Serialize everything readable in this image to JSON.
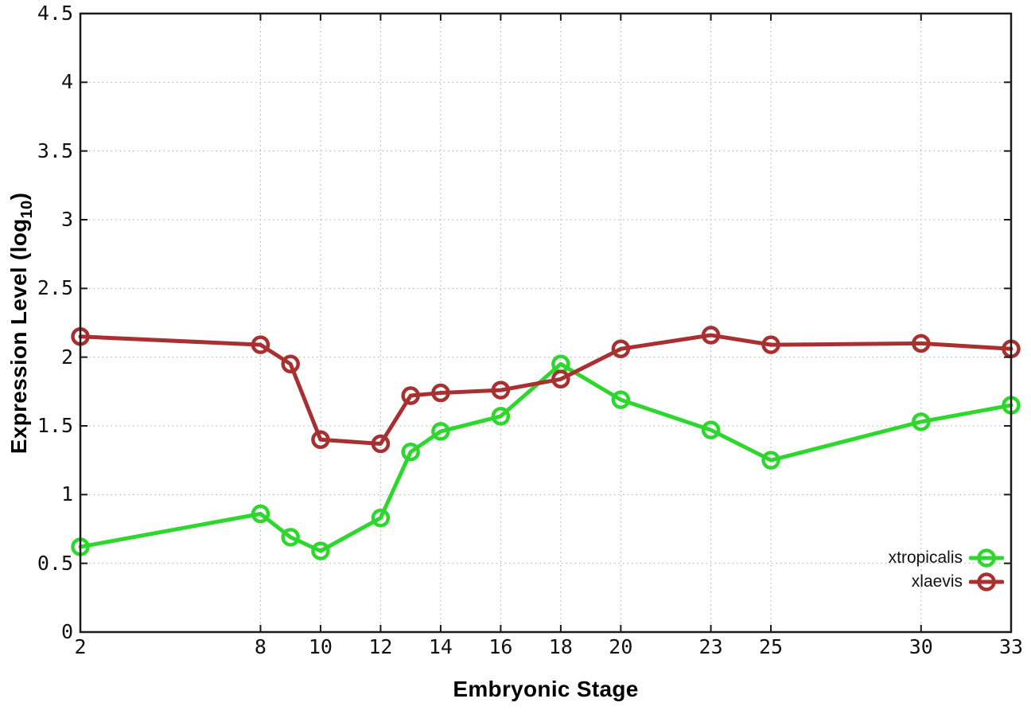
{
  "chart_data": {
    "type": "line",
    "title": "",
    "xlabel": "Embryonic Stage",
    "ylabel": "Expression Level (log10)",
    "ylabel_parts": {
      "prefix": "Expression Level (log",
      "sub": "10",
      "suffix": ")"
    },
    "x": [
      2,
      8,
      9,
      10,
      12,
      13,
      14,
      16,
      18,
      20,
      23,
      25,
      30,
      33
    ],
    "xlim": [
      2,
      33
    ],
    "ylim": [
      0,
      4.5
    ],
    "xticks": [
      2,
      8,
      10,
      12,
      14,
      16,
      18,
      20,
      23,
      25,
      30,
      33
    ],
    "yticks": [
      0,
      0.5,
      1,
      1.5,
      2,
      2.5,
      3,
      3.5,
      4,
      4.5
    ],
    "grid": true,
    "legend_position": "inside-bottom-right",
    "series": [
      {
        "name": "xtropicalis",
        "color": "#2dd72d",
        "values": [
          0.62,
          0.86,
          0.69,
          0.59,
          0.83,
          1.31,
          1.46,
          1.57,
          1.95,
          1.69,
          1.47,
          1.25,
          1.53,
          1.65
        ]
      },
      {
        "name": "xlaevis",
        "color": "#a83030",
        "values": [
          2.15,
          2.09,
          1.95,
          1.4,
          1.37,
          1.72,
          1.74,
          1.76,
          1.84,
          2.06,
          2.16,
          2.09,
          2.1,
          2.06
        ]
      }
    ],
    "style_colors": {
      "frame": "#1a1a1a",
      "grid": "#ababab",
      "tick": "#1a1a1a",
      "text": "#111111"
    }
  }
}
